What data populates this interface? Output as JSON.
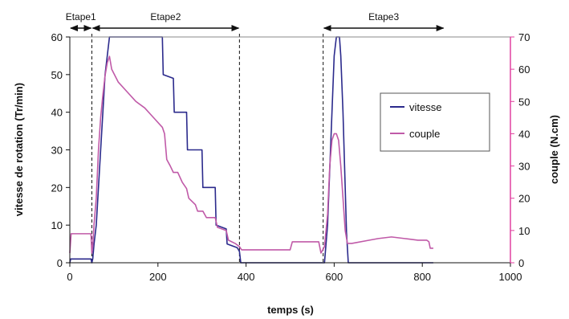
{
  "chart_data": {
    "type": "line",
    "title": "",
    "xlabel": "temps (s)",
    "ylabel_left": "vitesse de rotation (Tr/min)",
    "ylabel_right": "couple (N.cm)",
    "xlim": [
      0,
      1000
    ],
    "ylim_left": [
      0,
      60
    ],
    "ylim_right": [
      0,
      70
    ],
    "x_ticks": [
      "0",
      "200",
      "400",
      "600",
      "800",
      "1000"
    ],
    "y_left_ticks": [
      "0",
      "10",
      "20",
      "30",
      "40",
      "50",
      "60"
    ],
    "y_right_ticks": [
      "0",
      "10",
      "20",
      "30",
      "40",
      "50",
      "60",
      "70"
    ],
    "grid": false,
    "legend_position": "right",
    "colors": {
      "vitesse": "#2b2a8c",
      "couple": "#c05aa8",
      "right_axis": "#e040a0"
    },
    "stages": [
      {
        "label": "Etape1",
        "from": 0,
        "to": 50
      },
      {
        "label": "Etape2",
        "from": 50,
        "to": 385
      },
      {
        "label": "Etape3",
        "from": 575,
        "to": 850
      }
    ],
    "stage_dividers": [
      50,
      385,
      575
    ],
    "series": [
      {
        "name": "vitesse",
        "axis": "left",
        "points": [
          [
            0,
            0
          ],
          [
            2,
            1
          ],
          [
            48,
            1
          ],
          [
            50,
            0
          ],
          [
            52,
            1
          ],
          [
            55,
            5
          ],
          [
            58,
            8
          ],
          [
            60,
            10
          ],
          [
            65,
            20
          ],
          [
            70,
            30
          ],
          [
            75,
            40
          ],
          [
            80,
            50
          ],
          [
            85,
            55
          ],
          [
            90,
            60
          ],
          [
            150,
            60
          ],
          [
            210,
            60
          ],
          [
            212,
            50
          ],
          [
            235,
            49
          ],
          [
            237,
            40
          ],
          [
            265,
            40
          ],
          [
            267,
            30
          ],
          [
            300,
            30
          ],
          [
            302,
            20
          ],
          [
            330,
            20
          ],
          [
            332,
            10
          ],
          [
            355,
            9
          ],
          [
            357,
            5
          ],
          [
            380,
            4
          ],
          [
            385,
            3
          ],
          [
            388,
            0
          ],
          [
            565,
            0
          ],
          [
            578,
            0
          ],
          [
            585,
            10
          ],
          [
            590,
            25
          ],
          [
            595,
            40
          ],
          [
            600,
            55
          ],
          [
            605,
            60
          ],
          [
            612,
            60
          ],
          [
            615,
            55
          ],
          [
            620,
            40
          ],
          [
            625,
            20
          ],
          [
            628,
            8
          ],
          [
            632,
            0
          ],
          [
            640,
            0
          ],
          [
            825,
            0
          ]
        ]
      },
      {
        "name": "couple",
        "axis": "right",
        "points": [
          [
            0,
            3
          ],
          [
            3,
            9
          ],
          [
            48,
            9
          ],
          [
            50,
            3
          ],
          [
            52,
            5
          ],
          [
            55,
            12
          ],
          [
            60,
            20
          ],
          [
            65,
            35
          ],
          [
            70,
            45
          ],
          [
            75,
            52
          ],
          [
            80,
            58
          ],
          [
            85,
            62
          ],
          [
            90,
            64
          ],
          [
            95,
            60
          ],
          [
            110,
            56
          ],
          [
            130,
            53
          ],
          [
            150,
            50
          ],
          [
            170,
            48
          ],
          [
            190,
            45
          ],
          [
            210,
            42
          ],
          [
            215,
            40
          ],
          [
            220,
            32
          ],
          [
            228,
            30
          ],
          [
            235,
            28
          ],
          [
            245,
            28
          ],
          [
            255,
            25
          ],
          [
            265,
            23
          ],
          [
            270,
            20
          ],
          [
            285,
            18
          ],
          [
            290,
            16
          ],
          [
            302,
            16
          ],
          [
            310,
            14
          ],
          [
            330,
            14
          ],
          [
            335,
            11
          ],
          [
            355,
            10
          ],
          [
            360,
            7
          ],
          [
            375,
            6
          ],
          [
            385,
            5
          ],
          [
            390,
            4
          ],
          [
            500,
            4
          ],
          [
            505,
            6.5
          ],
          [
            565,
            6.5
          ],
          [
            570,
            3
          ],
          [
            578,
            5
          ],
          [
            585,
            15
          ],
          [
            590,
            30
          ],
          [
            595,
            38
          ],
          [
            600,
            40
          ],
          [
            605,
            40
          ],
          [
            610,
            38
          ],
          [
            615,
            30
          ],
          [
            620,
            20
          ],
          [
            625,
            10
          ],
          [
            630,
            6
          ],
          [
            640,
            6
          ],
          [
            680,
            7
          ],
          [
            700,
            7.5
          ],
          [
            730,
            8
          ],
          [
            760,
            7.5
          ],
          [
            790,
            7
          ],
          [
            810,
            7
          ],
          [
            815,
            6.5
          ],
          [
            818,
            4.5
          ],
          [
            825,
            4.5
          ]
        ]
      }
    ]
  }
}
